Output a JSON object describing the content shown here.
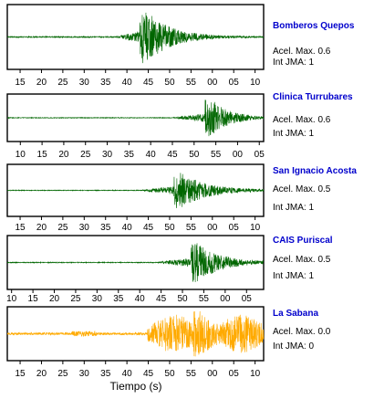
{
  "xlabel": "Tiempo (s)",
  "colors": {
    "normal": "#006600",
    "saturated": "#ffaa00",
    "station": "#0000cc"
  },
  "chart_data": [
    {
      "type": "line",
      "station": "Bomberos Quepos",
      "accel_label": "Acel. Max. 0.6",
      "jma_label": "Int JMA: 1",
      "ticks": [
        "15",
        "20",
        "25",
        "30",
        "35",
        "40",
        "45",
        "50",
        "55",
        "00",
        "05",
        "10"
      ],
      "xlim": [
        12,
        72
      ],
      "onset": 37.5,
      "peak": 44.5,
      "end_time": 60,
      "amplitude": 0.9,
      "color": "#006600"
    },
    {
      "type": "line",
      "station": "Clinica Turrubares",
      "accel_label": "Acel. Max. 0.6",
      "jma_label": "Int JMA: 1",
      "ticks": [
        "10",
        "15",
        "20",
        "25",
        "30",
        "35",
        "40",
        "45",
        "50",
        "55",
        "00",
        "05"
      ],
      "xlim": [
        7,
        66
      ],
      "onset": 45,
      "peak": 54,
      "end_time": 66,
      "amplitude": 0.85,
      "color": "#006600"
    },
    {
      "type": "line",
      "station": "San Ignacio Acosta",
      "accel_label": "Acel. Max. 0.5",
      "jma_label": "Int JMA: 1",
      "ticks": [
        "15",
        "20",
        "25",
        "30",
        "35",
        "40",
        "45",
        "50",
        "55",
        "00",
        "05",
        "10"
      ],
      "xlim": [
        12,
        72
      ],
      "onset": 43,
      "peak": 52.5,
      "end_time": 70,
      "amplitude": 0.75,
      "color": "#006600"
    },
    {
      "type": "line",
      "station": "CAIS Puriscal",
      "accel_label": "Acel. Max. 0.5",
      "jma_label": "Int JMA: 1",
      "ticks": [
        "10",
        "15",
        "20",
        "25",
        "30",
        "35",
        "40",
        "45",
        "50",
        "55",
        "00",
        "05"
      ],
      "xlim": [
        9,
        69
      ],
      "onset": 44,
      "peak": 53.5,
      "end_time": 69,
      "amplitude": 0.8,
      "color": "#006600"
    },
    {
      "type": "line",
      "station": "La Sabana",
      "accel_label": "Acel. Max. 0.0",
      "jma_label": "Int JMA: 0",
      "ticks": [
        "15",
        "20",
        "25",
        "30",
        "35",
        "40",
        "45",
        "50",
        "55",
        "00",
        "05",
        "10"
      ],
      "xlim": [
        12,
        72
      ],
      "onset": 44.8,
      "peak": 57,
      "end_time": 72,
      "amplitude": 0.95,
      "color": "#ffaa00"
    }
  ]
}
